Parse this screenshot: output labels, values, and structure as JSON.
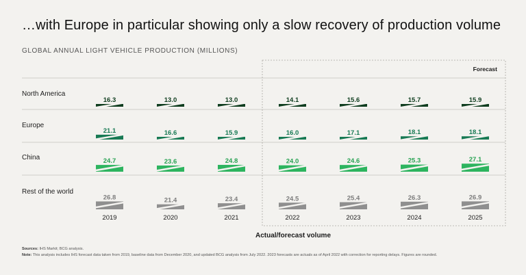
{
  "title": "…with Europe in particular showing only a slow recovery of production volume",
  "subtitle": "GLOBAL ANNUAL LIGHT VEHICLE PRODUCTION (MILLIONS)",
  "chart_data": {
    "type": "bar",
    "title": "GLOBAL ANNUAL LIGHT VEHICLE PRODUCTION (MILLIONS)",
    "categories": [
      "2019",
      "2020",
      "2021",
      "2022",
      "2023",
      "2024",
      "2025"
    ],
    "series": [
      {
        "name": "North America",
        "color": "#0f3d1f",
        "label_color": "#0f3d1f",
        "values": [
          16.3,
          13.0,
          13.0,
          14.1,
          15.6,
          15.7,
          15.9
        ],
        "display": [
          "16.3",
          "13.0",
          "13.0",
          "14.1",
          "15.6",
          "15.7",
          "15.9"
        ]
      },
      {
        "name": "Europe",
        "color": "#187a54",
        "label_color": "#187a54",
        "values": [
          21.1,
          16.6,
          15.9,
          16.0,
          17.1,
          18.1,
          18.1
        ],
        "display": [
          "21.1",
          "16.6",
          "15.9",
          "16.0",
          "17.1",
          "18.1",
          "18.1"
        ]
      },
      {
        "name": "China",
        "color": "#2db45f",
        "label_color": "#28a353",
        "values": [
          24.7,
          23.6,
          24.8,
          24.0,
          24.6,
          25.3,
          27.1
        ],
        "display": [
          "24.7",
          "23.6",
          "24.8",
          "24.0",
          "24.6",
          "25.3",
          "27.1"
        ]
      },
      {
        "name": "Rest of the world",
        "color": "#8f8f8f",
        "label_color": "#7d7d7d",
        "values": [
          26.8,
          21.4,
          23.4,
          24.5,
          25.4,
          26.3,
          26.9
        ],
        "display": [
          "26.8",
          "21.4",
          "23.4",
          "24.5",
          "25.4",
          "26.3",
          "26.9"
        ]
      }
    ],
    "forecast_label": "Forecast",
    "forecast_start": "2022",
    "xlabel": "Actual/forecast volume",
    "axis_break": true
  },
  "notes": {
    "sources_label": "Sources:",
    "sources_text": "IHS Markit; BCG analysis.",
    "note_label": "Note:",
    "note_text": "This analysis includes IHS forecast data taken from 2019, baseline data from December 2020, and updated BCG analysis from July 2022. 2023 forecasts are actuals as of April 2022 with correction for reporting delays. Figures are rounded."
  }
}
